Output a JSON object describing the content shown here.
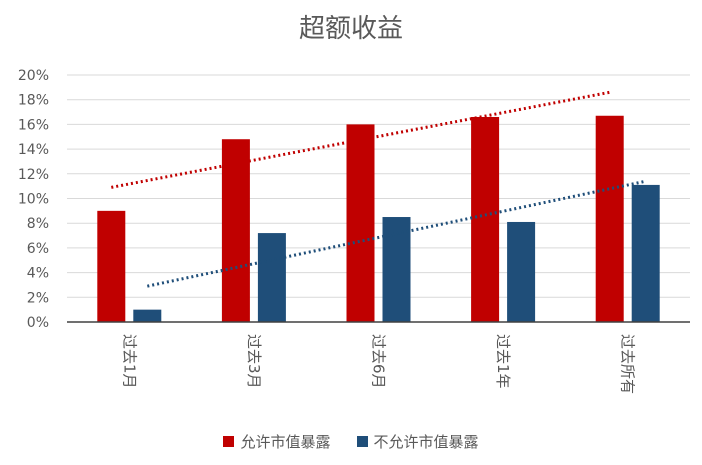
{
  "chart_data": {
    "type": "bar",
    "title": "超额收益",
    "categories": [
      "过去1月",
      "过去3月",
      "过去6月",
      "过去1年",
      "过去所有"
    ],
    "series": [
      {
        "name": "允许市值暴露",
        "color": "#c00000",
        "values": [
          9.0,
          14.8,
          16.0,
          16.6,
          16.7
        ]
      },
      {
        "name": "不允许市值暴露",
        "color": "#1f4e79",
        "values": [
          1.0,
          7.2,
          8.5,
          8.1,
          11.1
        ]
      }
    ],
    "trendlines": [
      {
        "series": "允许市值暴露",
        "style": "dotted",
        "start": 10.9,
        "end": 18.6
      },
      {
        "series": "不允许市值暴露",
        "style": "dotted",
        "start": 2.9,
        "end": 11.4
      }
    ],
    "y_ticks": [
      "0%",
      "2%",
      "4%",
      "6%",
      "8%",
      "10%",
      "12%",
      "14%",
      "16%",
      "18%",
      "20%"
    ],
    "ylim": [
      0,
      20
    ],
    "grid": true,
    "legend_position": "bottom"
  }
}
